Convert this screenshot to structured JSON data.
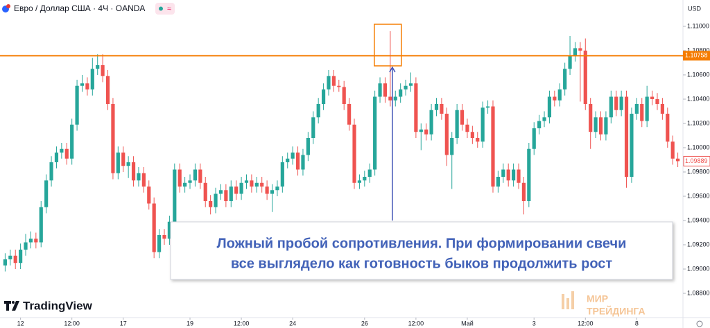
{
  "chart_data": {
    "type": "candlestick",
    "title": "Евро / Доллар США · 4Ч · OANDA",
    "currency": "USD",
    "colors": {
      "up": "#26a69a",
      "down": "#ef5350",
      "level": "#f57c00",
      "arrow": "#3f51b5"
    },
    "xlim": [
      -1,
      132
    ],
    "xticks": [
      {
        "value": 3,
        "label": "12"
      },
      {
        "value": 13,
        "label": "12:00"
      },
      {
        "value": 23,
        "label": "17"
      },
      {
        "value": 36,
        "label": "19"
      },
      {
        "value": 46,
        "label": "12:00"
      },
      {
        "value": 56,
        "label": "24"
      },
      {
        "value": 70,
        "label": "26"
      },
      {
        "value": 80,
        "label": "12:00"
      },
      {
        "value": 90,
        "label": "Май"
      },
      {
        "value": 103,
        "label": "3"
      },
      {
        "value": 113,
        "label": "12:00"
      },
      {
        "value": 123,
        "label": "8"
      }
    ],
    "ylim": [
      1.086,
      1.11217
    ],
    "yticks": [
      {
        "value": 1.088,
        "label": "1.08800"
      },
      {
        "value": 1.09,
        "label": "1.09000"
      },
      {
        "value": 1.092,
        "label": "1.09200"
      },
      {
        "value": 1.094,
        "label": "1.09400"
      },
      {
        "value": 1.096,
        "label": "1.09600"
      },
      {
        "value": 1.098,
        "label": "1.09800"
      },
      {
        "value": 1.1,
        "label": "1.10000"
      },
      {
        "value": 1.102,
        "label": "1.10200"
      },
      {
        "value": 1.104,
        "label": "1.10400"
      },
      {
        "value": 1.106,
        "label": "1.10600"
      },
      {
        "value": 1.108,
        "label": "1.10800"
      },
      {
        "value": 1.11,
        "label": "1.11000"
      }
    ],
    "hlines": [
      1.10758
    ],
    "highlight_candle": 75,
    "annotation": [
      "Ложный пробой сопротивления. При формировании свечи",
      "все выглядело как готовность быков продолжить рост"
    ],
    "open": [
      1.0903,
      1.0908,
      1.0911,
      1.0905,
      1.0916,
      1.0922,
      1.0925,
      1.0922,
      1.0951,
      1.0973,
      1.0988,
      1.0996,
      1.0999,
      1.0991,
      1.1019,
      1.1051,
      1.1053,
      1.1048,
      1.1065,
      1.1068,
      1.1059,
      1.1036,
      1.0979,
      1.0996,
      1.0985,
      1.0988,
      1.0973,
      1.0979,
      1.0968,
      1.0954,
      1.0914,
      1.0928,
      1.0925,
      1.0939,
      1.0982,
      1.0968,
      1.0971,
      1.0973,
      1.0982,
      1.0971,
      1.0956,
      1.0951,
      1.0962,
      1.0965,
      1.0956,
      1.0968,
      1.0962,
      1.0971,
      1.0973,
      1.0968,
      1.0971,
      1.0968,
      1.0962,
      1.0965,
      1.0968,
      1.0988,
      1.0991,
      1.0996,
      1.0982,
      1.0994,
      1.1008,
      1.1025,
      1.1036,
      1.1048,
      1.1059,
      1.1051,
      1.105,
      1.1036,
      1.1019,
      1.0971,
      1.0973,
      1.0976,
      1.0982,
      1.1042,
      1.1053,
      1.1042,
      1.1039,
      1.1042,
      1.1048,
      1.1051,
      1.1053,
      1.1013,
      1.1015,
      1.1011,
      1.1031,
      1.1036,
      1.1028,
      1.0994,
      1.1008,
      1.1031,
      1.1019,
      1.1013,
      1.1008,
      1.1005,
      1.1033,
      1.1034,
      1.0968,
      1.0976,
      1.0982,
      1.0973,
      1.0982,
      1.0971,
      1.0956,
      1.0999,
      1.1016,
      1.1022,
      1.1025,
      1.1042,
      1.1039,
      1.1048,
      1.1065,
      1.1076,
      1.1082,
      1.108,
      1.1036,
      1.1013,
      1.1025,
      1.1011,
      1.1025,
      1.1042,
      1.1031,
      1.1042,
      1.0976,
      1.1028,
      1.1036,
      1.1022,
      1.1042,
      1.104,
      1.1036,
      1.1028,
      1.1005,
      1.0991
    ],
    "high": [
      1.0913,
      1.0916,
      1.0916,
      1.0921,
      1.0929,
      1.0931,
      1.093,
      1.0956,
      1.0978,
      1.0993,
      1.1001,
      1.1004,
      1.1004,
      1.1024,
      1.1056,
      1.106,
      1.1058,
      1.1074,
      1.1077,
      1.1077,
      1.1064,
      1.1041,
      1.1001,
      1.1001,
      1.0993,
      1.0993,
      1.0984,
      1.0984,
      1.0973,
      1.0959,
      1.0933,
      1.0933,
      1.0944,
      1.0987,
      1.0987,
      1.0976,
      1.0978,
      1.0987,
      1.0987,
      1.0976,
      1.0961,
      1.0967,
      1.097,
      1.097,
      1.0973,
      1.0973,
      1.0976,
      1.0978,
      1.0978,
      1.0976,
      1.0976,
      1.0973,
      1.097,
      1.0973,
      1.0993,
      1.0996,
      1.1001,
      1.1001,
      1.0999,
      1.1013,
      1.103,
      1.1041,
      1.1053,
      1.1064,
      1.1064,
      1.1056,
      1.1055,
      1.1041,
      1.1024,
      1.0978,
      1.0981,
      1.0987,
      1.1047,
      1.1058,
      1.1058,
      1.1096,
      1.1047,
      1.1053,
      1.1056,
      1.1062,
      1.1058,
      1.102,
      1.102,
      1.1036,
      1.1041,
      1.1041,
      1.1033,
      1.1013,
      1.1036,
      1.1036,
      1.1024,
      1.1018,
      1.1013,
      1.1038,
      1.1039,
      1.1039,
      1.0981,
      1.0987,
      1.0987,
      1.0987,
      1.0987,
      1.0976,
      1.1004,
      1.1021,
      1.1027,
      1.103,
      1.1047,
      1.1047,
      1.1053,
      1.107,
      1.1092,
      1.1087,
      1.1087,
      1.109,
      1.1041,
      1.103,
      1.103,
      1.103,
      1.1047,
      1.1047,
      1.1047,
      1.1047,
      1.1033,
      1.1041,
      1.1041,
      1.1051,
      1.1047,
      1.1045,
      1.1041,
      1.1033,
      1.101,
      1.0996
    ],
    "low": [
      1.0898,
      1.0903,
      1.09,
      1.09,
      1.0911,
      1.0917,
      1.0917,
      1.0918,
      1.0946,
      1.0968,
      1.0983,
      1.0991,
      1.0986,
      1.0986,
      1.1014,
      1.1046,
      1.1043,
      1.1043,
      1.106,
      1.1054,
      1.1031,
      1.0974,
      1.0974,
      1.098,
      1.0975,
      1.0968,
      1.0968,
      1.0963,
      1.0949,
      1.0909,
      1.0909,
      1.092,
      1.092,
      1.0934,
      1.0963,
      1.0963,
      1.0966,
      1.0968,
      1.0966,
      1.0951,
      1.0945,
      1.0946,
      1.0957,
      1.0951,
      1.0951,
      1.0957,
      1.0957,
      1.0966,
      1.0963,
      1.0963,
      1.0963,
      1.0957,
      1.0947,
      1.096,
      1.0963,
      1.0983,
      1.0986,
      1.0977,
      1.0977,
      1.0989,
      1.1003,
      1.102,
      1.1031,
      1.1043,
      1.1046,
      1.1046,
      1.1031,
      1.1014,
      1.0966,
      1.0966,
      1.0968,
      1.0971,
      1.0977,
      1.1037,
      1.1037,
      1.1034,
      1.1034,
      1.1037,
      1.1043,
      1.1046,
      1.1008,
      1.0998,
      1.1006,
      1.1006,
      1.1026,
      1.1023,
      1.0985,
      1.0966,
      1.1003,
      1.1014,
      1.1008,
      1.1003,
      1.1,
      1.1,
      1.1028,
      1.0963,
      1.0963,
      1.0971,
      1.0968,
      1.0968,
      1.0966,
      1.0945,
      1.0951,
      1.0994,
      1.1011,
      1.1017,
      1.102,
      1.1034,
      1.1034,
      1.1043,
      1.106,
      1.1071,
      1.1038,
      1.1031,
      1.0999,
      1.1008,
      1.1006,
      1.1006,
      1.102,
      1.1026,
      1.1026,
      1.0967,
      1.0971,
      1.1023,
      1.1017,
      1.1017,
      1.1035,
      1.1031,
      1.1023,
      1.1,
      1.0986,
      1.0984
    ],
    "close": [
      1.0908,
      1.0911,
      1.0905,
      1.0916,
      1.0922,
      1.0925,
      1.0922,
      1.0951,
      1.0973,
      1.0988,
      1.0996,
      1.0999,
      1.0991,
      1.1019,
      1.1051,
      1.1053,
      1.1048,
      1.1065,
      1.1068,
      1.1059,
      1.1036,
      1.0979,
      1.0996,
      1.0985,
      1.0988,
      1.0973,
      1.0979,
      1.0968,
      1.0954,
      1.0914,
      1.0928,
      1.0925,
      1.0939,
      1.0982,
      1.0968,
      1.0971,
      1.0973,
      1.0982,
      1.0971,
      1.0956,
      1.0951,
      1.0962,
      1.0965,
      1.0956,
      1.0968,
      1.0962,
      1.0971,
      1.0973,
      1.0968,
      1.0971,
      1.0968,
      1.0962,
      1.0965,
      1.0968,
      1.0988,
      1.0991,
      1.0996,
      1.0982,
      1.0994,
      1.1008,
      1.1025,
      1.1036,
      1.1048,
      1.1059,
      1.1051,
      1.105,
      1.1036,
      1.1019,
      1.0971,
      1.0973,
      1.0976,
      1.0982,
      1.1042,
      1.1053,
      1.1042,
      1.1039,
      1.1042,
      1.1048,
      1.1051,
      1.1053,
      1.1013,
      1.1015,
      1.1011,
      1.1031,
      1.1036,
      1.1028,
      1.0994,
      1.1008,
      1.1031,
      1.1019,
      1.1013,
      1.1008,
      1.1005,
      1.1033,
      1.1034,
      1.0968,
      1.0976,
      1.0982,
      1.0973,
      1.0982,
      1.0971,
      1.0956,
      1.0999,
      1.1016,
      1.1022,
      1.1025,
      1.1042,
      1.1039,
      1.1048,
      1.1065,
      1.1076,
      1.1082,
      1.108,
      1.1036,
      1.1013,
      1.1025,
      1.1011,
      1.1025,
      1.1042,
      1.1031,
      1.1042,
      1.0976,
      1.1028,
      1.1036,
      1.1022,
      1.1042,
      1.104,
      1.1036,
      1.1028,
      1.1005,
      1.0991,
      1.09889
    ]
  },
  "toolbar": {
    "badge": "≈"
  },
  "branding": {
    "logo": "TradingView",
    "watermark": [
      "МИР",
      "ТРЕЙДИНГА"
    ]
  }
}
